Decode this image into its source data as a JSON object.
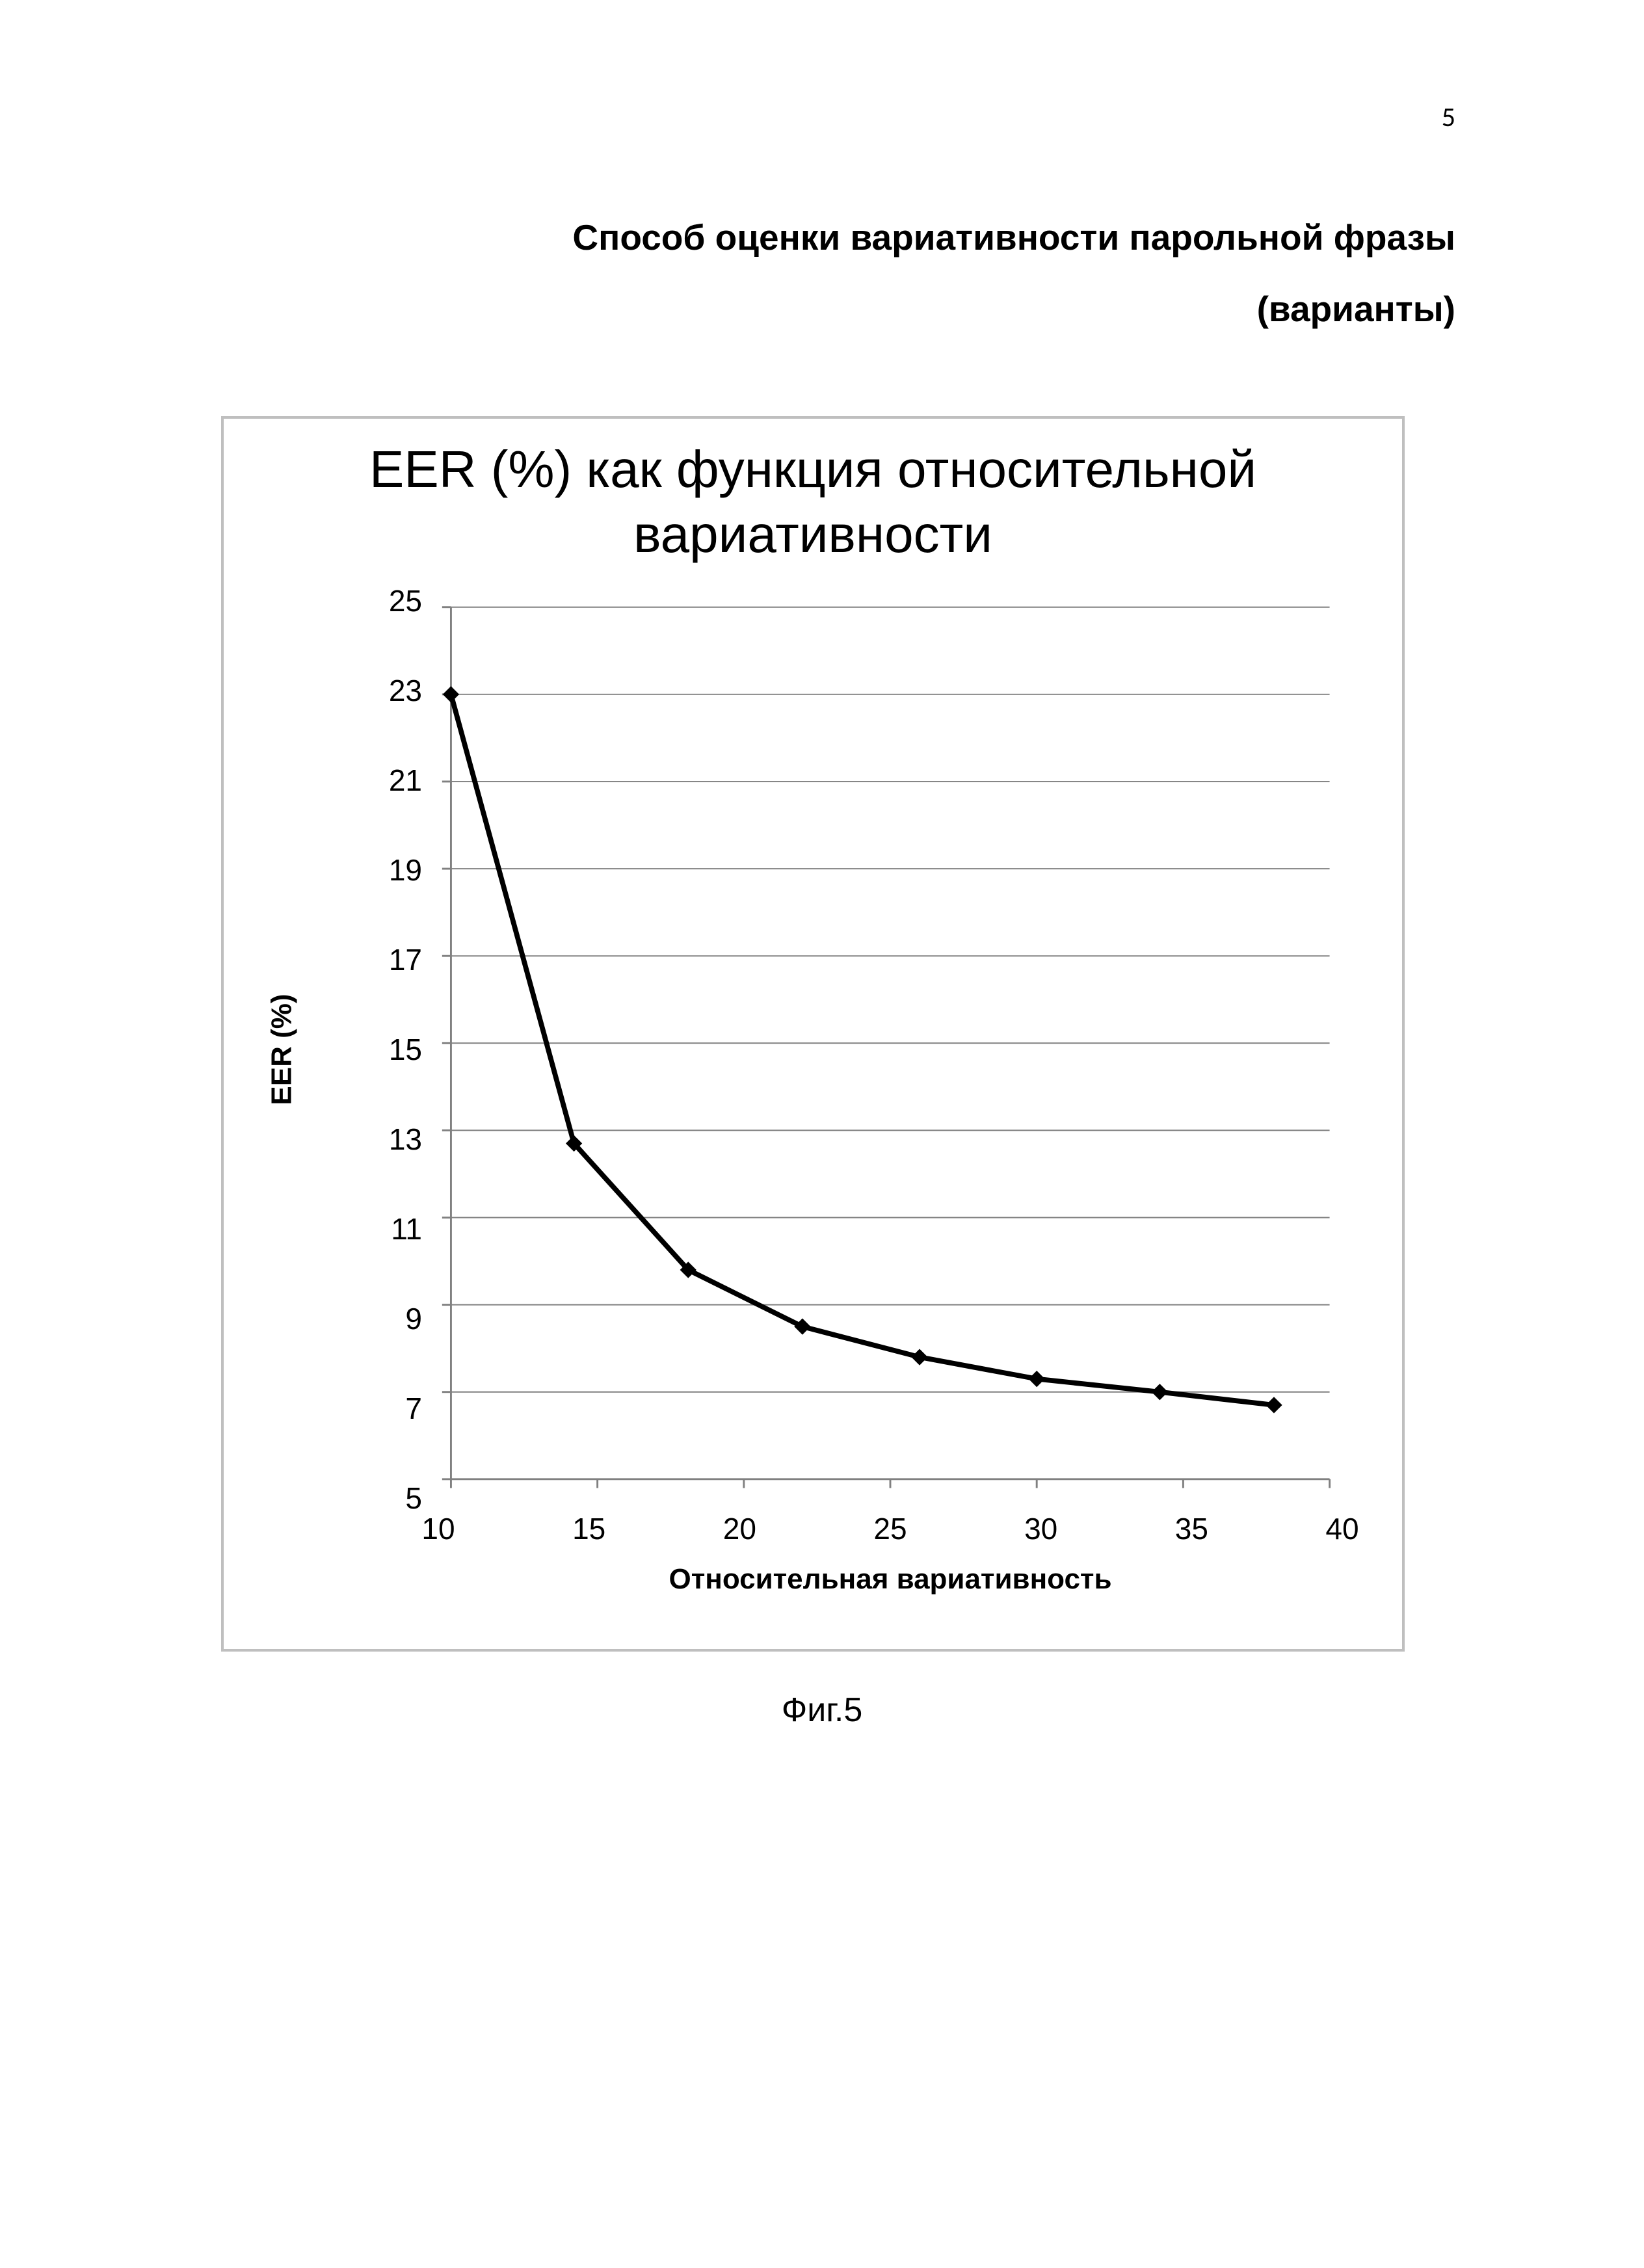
{
  "page_number": "5",
  "doc_title_line1": "Способ  оценки вариативности парольной фразы",
  "doc_title_line2": "(варианты)",
  "figure_caption": "Фиг.5",
  "chart": {
    "type": "line",
    "title_line1": "EER (%) как функция относительной",
    "title_line2": "вариативности",
    "xlabel": "Относительная вариативность",
    "ylabel": "EER (%)",
    "xlim": [
      10,
      40
    ],
    "ylim": [
      5,
      25
    ],
    "xticks": [
      10,
      15,
      20,
      25,
      30,
      35,
      40
    ],
    "yticks": [
      5,
      7,
      9,
      11,
      13,
      15,
      17,
      19,
      21,
      23,
      25
    ],
    "series_x": [
      10,
      14.2,
      18.1,
      22,
      26,
      30,
      34.2,
      38.1
    ],
    "series_y": [
      23,
      12.7,
      9.8,
      8.5,
      7.8,
      7.3,
      7.0,
      6.7
    ],
    "line_color": "#000000",
    "line_width": 8,
    "marker_size": 26,
    "marker_color": "#000000",
    "axis_color": "#808080",
    "grid_color": "#808080",
    "background_color": "#ffffff",
    "title_fontsize": 80,
    "label_fontsize": 44,
    "tick_fontsize": 46
  }
}
